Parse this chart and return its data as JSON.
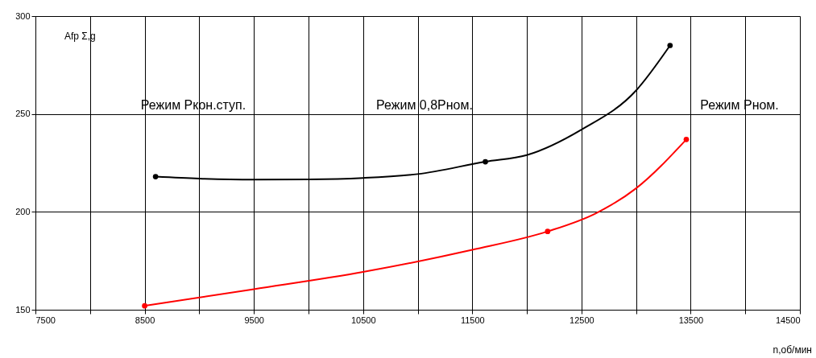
{
  "chart_data": {
    "type": "line",
    "xlabel": "n,об/мин",
    "ylabel": "Afp Σ,g",
    "xlim": [
      7500,
      14500
    ],
    "ylim": [
      150,
      300
    ],
    "xticks": [
      7500,
      {
        "value": 8000,
        "label": null
      },
      8500,
      {
        "value": 9000,
        "label": null
      },
      9500,
      {
        "value": 10000,
        "label": null
      },
      10500,
      {
        "value": 11000,
        "label": null
      },
      11500,
      {
        "value": 12000,
        "label": null
      },
      12500,
      {
        "value": 13000,
        "label": null
      },
      13500,
      {
        "value": 14000,
        "label": null
      },
      14500
    ],
    "yticks": [
      150,
      200,
      250,
      300
    ],
    "grid": true,
    "series": [
      {
        "color": "#000000",
        "marker": "none",
        "x": [
          8600,
          9000,
          9500,
          10000,
          10500,
          11000,
          11620,
          12000,
          12500,
          13000,
          13311
        ],
        "values": [
          218,
          217,
          216.5,
          216.6,
          217.3,
          219.3,
          225.6,
          229,
          242,
          262,
          285
        ]
      },
      {
        "type": "scatter",
        "color": "#000000",
        "marker": "circle",
        "x": [
          8600,
          11620,
          13311
        ],
        "values": [
          218,
          225.6,
          285
        ]
      },
      {
        "color": "#ff0000",
        "marker": "none",
        "x": [
          8500,
          9500,
          10500,
          11500,
          12190,
          12633,
          13000,
          13460
        ],
        "values": [
          152,
          160.5,
          169.3,
          180.6,
          190,
          199.3,
          212,
          237
        ]
      },
      {
        "type": "scatter",
        "color": "#ff0000",
        "marker": "circle",
        "x": [
          8500,
          12190,
          13460
        ],
        "values": [
          152,
          190,
          237
        ]
      }
    ],
    "annotations": [
      "Режим Ркон.ступ.",
      "Режим 0,8Рном.",
      "Режим Рном."
    ]
  }
}
